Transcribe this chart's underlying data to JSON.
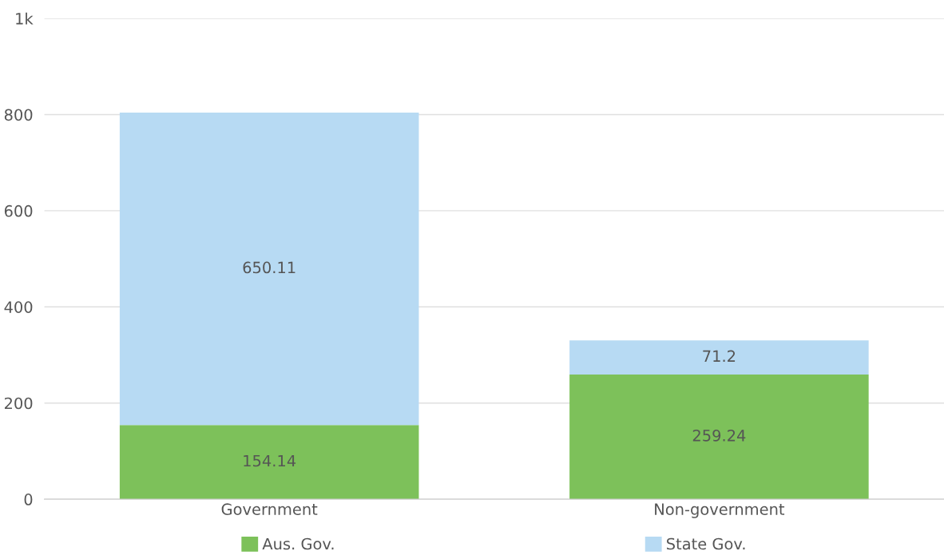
{
  "chart_data": {
    "type": "bar",
    "stacked": true,
    "categories": [
      "Government",
      "Non-government"
    ],
    "series": [
      {
        "name": "Aus. Gov.",
        "color": "#7dc15a",
        "values": [
          154.14,
          259.24
        ]
      },
      {
        "name": "State Gov.",
        "color": "#b7daf3",
        "values": [
          650.11,
          71.2
        ]
      }
    ],
    "ylim": [
      0,
      1000
    ],
    "yticks": [
      0,
      200,
      400,
      600,
      800,
      {
        "value": 1000,
        "label": "1k"
      }
    ],
    "grid": "y",
    "legend": "bottom",
    "data_labels": true
  }
}
